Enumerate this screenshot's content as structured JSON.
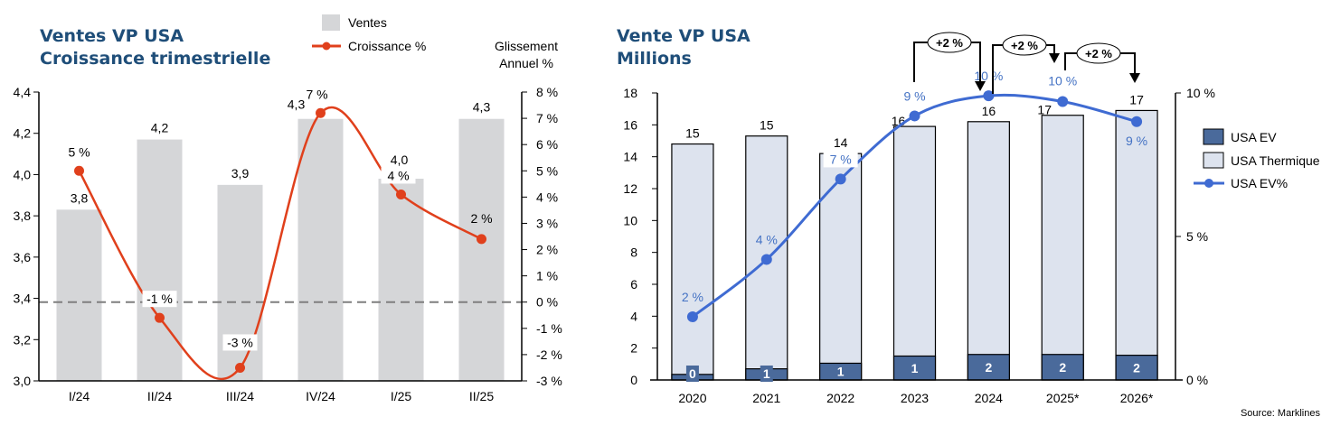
{
  "chart_data": [
    {
      "type": "bar",
      "title": "Ventes VP USA",
      "subtitle": "Croissance trimestrielle",
      "right_axis_title": "Glissement Annuel %",
      "categories": [
        "I/24",
        "II/24",
        "III/24",
        "IV/24",
        "I/25",
        "II/25"
      ],
      "series": [
        {
          "name": "Ventes",
          "type": "bar",
          "axis": "left",
          "values": [
            3.83,
            4.17,
            3.95,
            4.27,
            3.98,
            4.27
          ],
          "labels": [
            "3,8",
            "4,2",
            "3,9",
            "4,3",
            "4,0",
            "4,3"
          ],
          "color": "#d5d6d8"
        },
        {
          "name": "Croissance %",
          "type": "line",
          "axis": "right",
          "values": [
            5,
            -0.6,
            -2.5,
            7.2,
            4.1,
            2.4
          ],
          "labels": [
            "5 %",
            "-1 %",
            "-3 %",
            "7 %",
            "4 %",
            "2 %"
          ],
          "color": "#e0401c"
        }
      ],
      "ylim_left": [
        3.0,
        4.4
      ],
      "yticks_left": [
        "3,0",
        "3,2",
        "3,4",
        "3,6",
        "3,8",
        "4,0",
        "4,2",
        "4,4"
      ],
      "ylim_right": [
        -3,
        8
      ],
      "yticks_right": [
        "-3 %",
        "-2 %",
        "-1 %",
        "0 %",
        "1 %",
        "2 %",
        "3 %",
        "4 %",
        "5 %",
        "6 %",
        "7 %",
        "8 %"
      ],
      "reference_line": {
        "axis": "right",
        "value": 0,
        "style": "dashed"
      },
      "legend": [
        "Ventes",
        "Croissance %"
      ],
      "legend_position": "top"
    },
    {
      "type": "bar",
      "stacked": true,
      "title": "Vente VP USA",
      "subtitle": "Millions",
      "categories": [
        "2020",
        "2021",
        "2022",
        "2023",
        "2024",
        "2025*",
        "2026*"
      ],
      "series": [
        {
          "name": "USA EV",
          "type": "bar",
          "axis": "left",
          "values": [
            0.35,
            0.7,
            1.05,
            1.5,
            1.6,
            1.6,
            1.55
          ],
          "labels": [
            "0",
            "1",
            "1",
            "1",
            "2",
            "2",
            "2"
          ],
          "color": "#4a6a9b"
        },
        {
          "name": "USA Thermique",
          "type": "bar",
          "axis": "left",
          "values": [
            14.45,
            14.6,
            13.15,
            14.4,
            14.6,
            15.0,
            15.35
          ],
          "color": "#dde3ee"
        },
        {
          "name": "USA EV%",
          "type": "line",
          "axis": "right",
          "values": [
            2.2,
            4.2,
            7.0,
            9.2,
            9.9,
            9.7,
            9.0
          ],
          "labels": [
            "2 %",
            "4 %",
            "7 %",
            "9 %",
            "10 %",
            "10 %",
            "9 %"
          ],
          "color": "#3f6bd2"
        }
      ],
      "totals": [
        14.8,
        15.3,
        14.2,
        15.9,
        16.2,
        16.6,
        16.9
      ],
      "total_labels": [
        "15",
        "15",
        "14",
        "16",
        "16",
        "17",
        "17"
      ],
      "ylim_left": [
        0,
        18
      ],
      "yticks_left": [
        "0",
        "2",
        "4",
        "6",
        "8",
        "10",
        "12",
        "14",
        "16",
        "18"
      ],
      "ylim_right": [
        0,
        10
      ],
      "yticks_right": [
        "0 %",
        "5 %",
        "10 %"
      ],
      "annotations": [
        {
          "from": "2023",
          "to": "2024",
          "text": "+2 %"
        },
        {
          "from": "2024",
          "to": "2025*",
          "text": "+2 %"
        },
        {
          "from": "2025*",
          "to": "2026*",
          "text": "+2 %"
        }
      ],
      "legend": [
        "USA EV",
        "USA Thermique",
        "USA EV%"
      ],
      "legend_position": "right",
      "source": "Source: Marklines"
    }
  ]
}
